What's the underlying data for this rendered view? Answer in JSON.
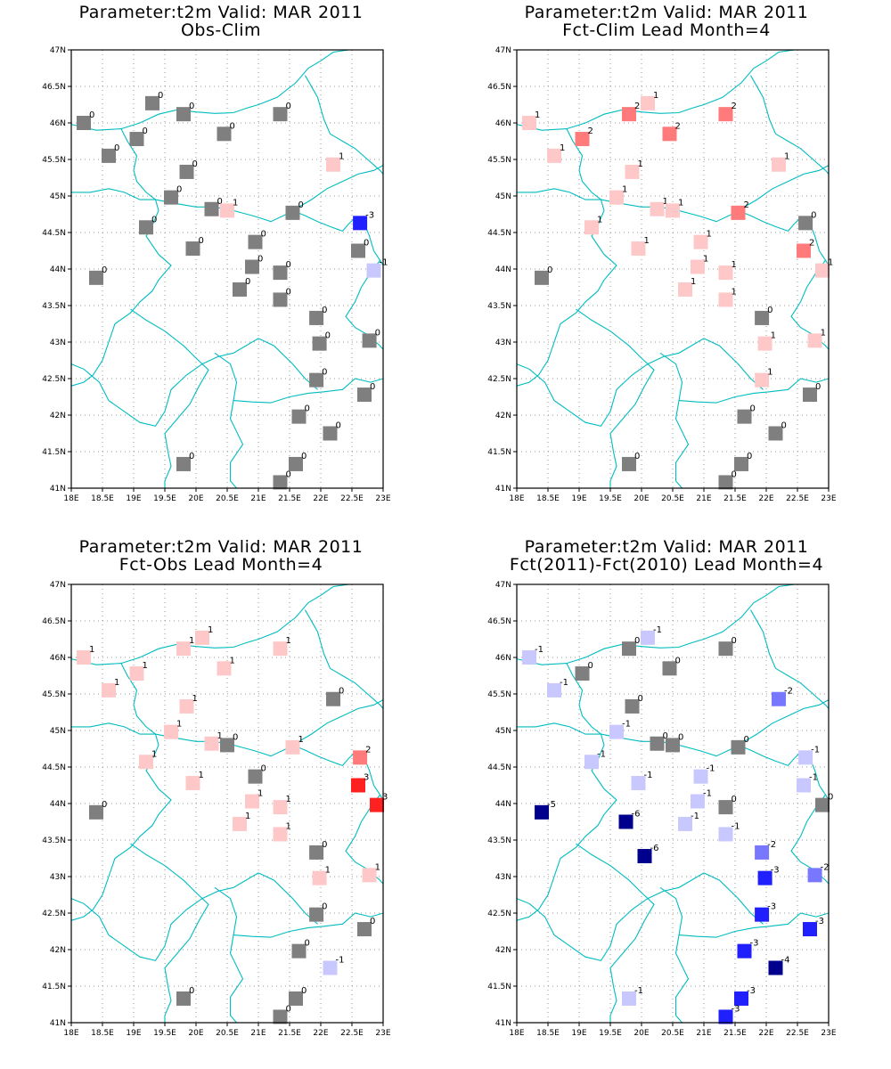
{
  "figure": {
    "panels": [
      {
        "title_line1": "Parameter:t2m Valid: MAR 2011",
        "title_line2": "Obs-Clim",
        "stations": [
          {
            "lon": 18.2,
            "lat": 46.0,
            "v": 0
          },
          {
            "lon": 19.3,
            "lat": 46.27,
            "v": 0
          },
          {
            "lon": 19.8,
            "lat": 46.12,
            "v": 0
          },
          {
            "lon": 21.35,
            "lat": 46.12,
            "v": 0
          },
          {
            "lon": 19.05,
            "lat": 45.78,
            "v": 0
          },
          {
            "lon": 20.45,
            "lat": 45.85,
            "v": 0
          },
          {
            "lon": 18.6,
            "lat": 45.55,
            "v": 0
          },
          {
            "lon": 19.85,
            "lat": 45.33,
            "v": 0
          },
          {
            "lon": 22.2,
            "lat": 45.43,
            "v": 1
          },
          {
            "lon": 19.6,
            "lat": 44.98,
            "v": 0
          },
          {
            "lon": 20.25,
            "lat": 44.82,
            "v": 0
          },
          {
            "lon": 20.5,
            "lat": 44.8,
            "v": 1
          },
          {
            "lon": 21.55,
            "lat": 44.77,
            "v": 0
          },
          {
            "lon": 22.63,
            "lat": 44.63,
            "v": -3
          },
          {
            "lon": 19.2,
            "lat": 44.57,
            "v": 0
          },
          {
            "lon": 19.95,
            "lat": 44.28,
            "v": 0
          },
          {
            "lon": 20.95,
            "lat": 44.37,
            "v": 0
          },
          {
            "lon": 22.6,
            "lat": 44.25,
            "v": 0
          },
          {
            "lon": 22.85,
            "lat": 43.98,
            "v": -1
          },
          {
            "lon": 20.9,
            "lat": 44.03,
            "v": 0
          },
          {
            "lon": 21.35,
            "lat": 43.95,
            "v": 0
          },
          {
            "lon": 18.4,
            "lat": 43.88,
            "v": 0
          },
          {
            "lon": 20.7,
            "lat": 43.72,
            "v": 0
          },
          {
            "lon": 21.35,
            "lat": 43.58,
            "v": 0
          },
          {
            "lon": 21.93,
            "lat": 43.33,
            "v": 0
          },
          {
            "lon": 21.98,
            "lat": 42.98,
            "v": 0
          },
          {
            "lon": 22.78,
            "lat": 43.02,
            "v": 0
          },
          {
            "lon": 21.93,
            "lat": 42.48,
            "v": 0
          },
          {
            "lon": 22.7,
            "lat": 42.28,
            "v": 0
          },
          {
            "lon": 21.65,
            "lat": 41.98,
            "v": 0
          },
          {
            "lon": 22.15,
            "lat": 41.75,
            "v": 0
          },
          {
            "lon": 19.8,
            "lat": 41.33,
            "v": 0
          },
          {
            "lon": 21.6,
            "lat": 41.33,
            "v": 0
          },
          {
            "lon": 21.35,
            "lat": 41.08,
            "v": 0
          }
        ]
      },
      {
        "title_line1": "Parameter:t2m Valid: MAR 2011",
        "title_line2": "Fct-Clim Lead Month=4",
        "stations": [
          {
            "lon": 18.2,
            "lat": 46.0,
            "v": 1
          },
          {
            "lon": 20.1,
            "lat": 46.27,
            "v": 1
          },
          {
            "lon": 19.8,
            "lat": 46.12,
            "v": 2
          },
          {
            "lon": 21.35,
            "lat": 46.12,
            "v": 2
          },
          {
            "lon": 19.05,
            "lat": 45.78,
            "v": 2
          },
          {
            "lon": 20.45,
            "lat": 45.85,
            "v": 2
          },
          {
            "lon": 18.6,
            "lat": 45.55,
            "v": 1
          },
          {
            "lon": 19.85,
            "lat": 45.33,
            "v": 1
          },
          {
            "lon": 22.2,
            "lat": 45.43,
            "v": 1
          },
          {
            "lon": 19.6,
            "lat": 44.98,
            "v": 1
          },
          {
            "lon": 20.25,
            "lat": 44.82,
            "v": 1
          },
          {
            "lon": 20.5,
            "lat": 44.8,
            "v": 1
          },
          {
            "lon": 21.55,
            "lat": 44.77,
            "v": 2
          },
          {
            "lon": 22.63,
            "lat": 44.63,
            "v": 0
          },
          {
            "lon": 19.2,
            "lat": 44.57,
            "v": 1
          },
          {
            "lon": 19.95,
            "lat": 44.28,
            "v": 1
          },
          {
            "lon": 20.95,
            "lat": 44.37,
            "v": 1
          },
          {
            "lon": 22.6,
            "lat": 44.25,
            "v": 2
          },
          {
            "lon": 22.9,
            "lat": 43.98,
            "v": 1
          },
          {
            "lon": 20.9,
            "lat": 44.03,
            "v": 1
          },
          {
            "lon": 21.35,
            "lat": 43.95,
            "v": 1
          },
          {
            "lon": 18.4,
            "lat": 43.88,
            "v": 0
          },
          {
            "lon": 20.7,
            "lat": 43.72,
            "v": 1
          },
          {
            "lon": 21.35,
            "lat": 43.58,
            "v": 1
          },
          {
            "lon": 21.93,
            "lat": 43.33,
            "v": 0
          },
          {
            "lon": 21.98,
            "lat": 42.98,
            "v": 1
          },
          {
            "lon": 22.78,
            "lat": 43.02,
            "v": 1
          },
          {
            "lon": 21.93,
            "lat": 42.48,
            "v": 1
          },
          {
            "lon": 22.7,
            "lat": 42.28,
            "v": 0
          },
          {
            "lon": 21.65,
            "lat": 41.98,
            "v": 0
          },
          {
            "lon": 22.15,
            "lat": 41.75,
            "v": 0
          },
          {
            "lon": 19.8,
            "lat": 41.33,
            "v": 0
          },
          {
            "lon": 21.6,
            "lat": 41.33,
            "v": 0
          },
          {
            "lon": 21.35,
            "lat": 41.08,
            "v": 0
          }
        ]
      },
      {
        "title_line1": "Parameter:t2m Valid: MAR 2011",
        "title_line2": "Fct-Obs Lead Month=4",
        "stations": [
          {
            "lon": 18.2,
            "lat": 46.0,
            "v": 1
          },
          {
            "lon": 20.1,
            "lat": 46.27,
            "v": 1
          },
          {
            "lon": 19.8,
            "lat": 46.12,
            "v": 1
          },
          {
            "lon": 21.35,
            "lat": 46.12,
            "v": 1
          },
          {
            "lon": 19.05,
            "lat": 45.78,
            "v": 1
          },
          {
            "lon": 20.45,
            "lat": 45.85,
            "v": 1
          },
          {
            "lon": 18.6,
            "lat": 45.55,
            "v": 1
          },
          {
            "lon": 19.85,
            "lat": 45.33,
            "v": 1
          },
          {
            "lon": 22.2,
            "lat": 45.43,
            "v": 0
          },
          {
            "lon": 19.6,
            "lat": 44.98,
            "v": 1
          },
          {
            "lon": 20.25,
            "lat": 44.82,
            "v": 1
          },
          {
            "lon": 20.5,
            "lat": 44.8,
            "v": 0
          },
          {
            "lon": 21.55,
            "lat": 44.77,
            "v": 1
          },
          {
            "lon": 22.63,
            "lat": 44.63,
            "v": 2
          },
          {
            "lon": 19.2,
            "lat": 44.57,
            "v": 1
          },
          {
            "lon": 19.95,
            "lat": 44.28,
            "v": 1
          },
          {
            "lon": 20.95,
            "lat": 44.37,
            "v": 0
          },
          {
            "lon": 22.6,
            "lat": 44.25,
            "v": 3
          },
          {
            "lon": 22.9,
            "lat": 43.98,
            "v": 3
          },
          {
            "lon": 20.9,
            "lat": 44.03,
            "v": 1
          },
          {
            "lon": 21.35,
            "lat": 43.95,
            "v": 1
          },
          {
            "lon": 18.4,
            "lat": 43.88,
            "v": 0
          },
          {
            "lon": 20.7,
            "lat": 43.72,
            "v": 1
          },
          {
            "lon": 21.35,
            "lat": 43.58,
            "v": 1
          },
          {
            "lon": 21.93,
            "lat": 43.33,
            "v": 0
          },
          {
            "lon": 21.98,
            "lat": 42.98,
            "v": 1
          },
          {
            "lon": 22.78,
            "lat": 43.02,
            "v": 1
          },
          {
            "lon": 21.93,
            "lat": 42.48,
            "v": 0
          },
          {
            "lon": 22.7,
            "lat": 42.28,
            "v": 0
          },
          {
            "lon": 21.65,
            "lat": 41.98,
            "v": 0
          },
          {
            "lon": 22.15,
            "lat": 41.75,
            "v": -1
          },
          {
            "lon": 19.8,
            "lat": 41.33,
            "v": 0
          },
          {
            "lon": 21.6,
            "lat": 41.33,
            "v": 0
          },
          {
            "lon": 21.35,
            "lat": 41.08,
            "v": 0
          }
        ]
      },
      {
        "title_line1": "Parameter:t2m Valid: MAR 2011",
        "title_line2": "Fct(2011)-Fct(2010) Lead Month=4",
        "stations": [
          {
            "lon": 18.2,
            "lat": 46.0,
            "v": -1
          },
          {
            "lon": 20.1,
            "lat": 46.27,
            "v": -1
          },
          {
            "lon": 19.8,
            "lat": 46.12,
            "v": 0
          },
          {
            "lon": 21.35,
            "lat": 46.12,
            "v": 0
          },
          {
            "lon": 19.05,
            "lat": 45.78,
            "v": 0
          },
          {
            "lon": 20.45,
            "lat": 45.85,
            "v": 0
          },
          {
            "lon": 18.6,
            "lat": 45.55,
            "v": -1
          },
          {
            "lon": 19.85,
            "lat": 45.33,
            "v": 0
          },
          {
            "lon": 22.2,
            "lat": 45.43,
            "v": -2
          },
          {
            "lon": 19.6,
            "lat": 44.98,
            "v": -1
          },
          {
            "lon": 20.25,
            "lat": 44.82,
            "v": 0
          },
          {
            "lon": 20.5,
            "lat": 44.8,
            "v": 0
          },
          {
            "lon": 21.55,
            "lat": 44.77,
            "v": 0
          },
          {
            "lon": 22.63,
            "lat": 44.63,
            "v": -1
          },
          {
            "lon": 19.2,
            "lat": 44.57,
            "v": -1
          },
          {
            "lon": 19.95,
            "lat": 44.28,
            "v": -1
          },
          {
            "lon": 20.95,
            "lat": 44.37,
            "v": -1
          },
          {
            "lon": 22.6,
            "lat": 44.25,
            "v": -1
          },
          {
            "lon": 22.9,
            "lat": 43.98,
            "v": 0
          },
          {
            "lon": 20.9,
            "lat": 44.03,
            "v": -1
          },
          {
            "lon": 21.35,
            "lat": 43.95,
            "v": 0
          },
          {
            "lon": 18.4,
            "lat": 43.88,
            "v": -5
          },
          {
            "lon": 19.75,
            "lat": 43.75,
            "v": -6
          },
          {
            "lon": 20.7,
            "lat": 43.72,
            "v": -1
          },
          {
            "lon": 21.35,
            "lat": 43.58,
            "v": -1
          },
          {
            "lon": 20.05,
            "lat": 43.28,
            "v": -6
          },
          {
            "lon": 21.93,
            "lat": 43.33,
            "v": -2
          },
          {
            "lon": 21.98,
            "lat": 42.98,
            "v": -3
          },
          {
            "lon": 22.78,
            "lat": 43.02,
            "v": -2
          },
          {
            "lon": 21.93,
            "lat": 42.48,
            "v": -3
          },
          {
            "lon": 22.7,
            "lat": 42.28,
            "v": -3
          },
          {
            "lon": 21.65,
            "lat": 41.98,
            "v": -3
          },
          {
            "lon": 22.15,
            "lat": 41.75,
            "v": -4
          },
          {
            "lon": 19.8,
            "lat": 41.33,
            "v": -1
          },
          {
            "lon": 21.6,
            "lat": 41.33,
            "v": -3
          },
          {
            "lon": 21.35,
            "lat": 41.08,
            "v": -3
          }
        ]
      }
    ],
    "lon_ticks": [
      "18E",
      "18.5E",
      "19E",
      "19.5E",
      "20E",
      "20.5E",
      "21E",
      "21.5E",
      "22E",
      "22.5E",
      "23E"
    ],
    "lat_ticks": [
      "41N",
      "41.5N",
      "42N",
      "42.5N",
      "43N",
      "43.5N",
      "44N",
      "44.5N",
      "45N",
      "45.5N",
      "46N",
      "46.5N",
      "47N"
    ],
    "lon_range": [
      18,
      23
    ],
    "lat_range": [
      41,
      47
    ],
    "colors": {
      "zero": "#7f7f7f",
      "pos1": "#ffc8c8",
      "pos2": "#ff7a7a",
      "pos3": "#ff2020",
      "neg1": "#c8c8ff",
      "neg2": "#7878ff",
      "neg3": "#2020ff",
      "neg4": "#00008c",
      "border_lines": "#00bcc0",
      "grid": "#9a9a9a"
    }
  }
}
